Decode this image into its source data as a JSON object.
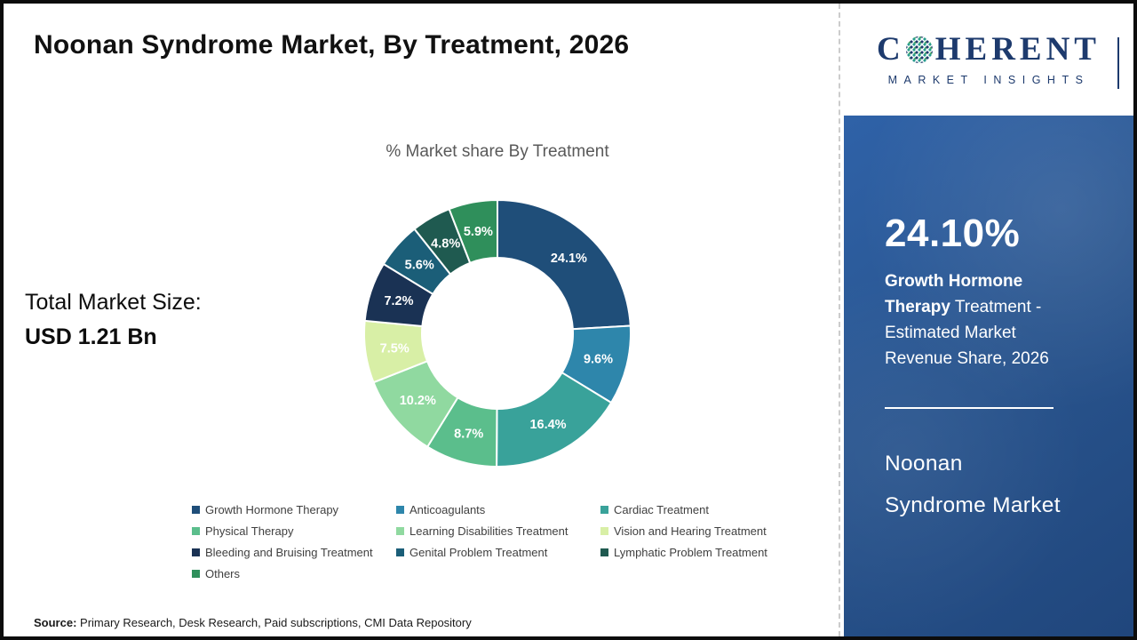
{
  "page": {
    "title": "Noonan Syndrome Market, By Treatment, 2026",
    "chart_heading": "% Market share By Treatment",
    "total_market_label": "Total Market Size:",
    "total_market_value": "USD 1.21 Bn",
    "source_label": "Source:",
    "source_text": " Primary Research, Desk Research, Paid subscriptions, CMI Data Repository"
  },
  "logo": {
    "word_start": "C",
    "word_rest": "HERENT",
    "subtitle": "MARKET INSIGHTS",
    "brand_navy": "#1d3a6d",
    "brand_teal": "#2a9d8f"
  },
  "sidebar": {
    "stat_value": "24.10%",
    "stat_desc_bold": "Growth Hormone Therapy",
    "stat_desc_rest": " Treatment - Estimated Market Revenue Share, 2026",
    "panel_title_line1": "Noonan",
    "panel_title_line2": "Syndrome Market",
    "panel_color": "#29558f"
  },
  "chart_data": {
    "type": "pie",
    "donut": true,
    "title": "% Market share By Treatment",
    "legend_position": "bottom",
    "data_label_format": "percent",
    "labels": [
      "Growth Hormone Therapy",
      "Anticoagulants",
      "Cardiac Treatment",
      "Physical Therapy",
      "Learning Disabilities Treatment",
      "Vision and Hearing Treatment",
      "Bleeding and Bruising Treatment",
      "Genital Problem Treatment",
      "Lymphatic Problem Treatment",
      "Others"
    ],
    "values": [
      24.1,
      9.6,
      16.4,
      8.7,
      10.2,
      7.5,
      7.2,
      5.6,
      4.8,
      5.9
    ],
    "colors": [
      "#1F4E79",
      "#2E86AB",
      "#39A29A",
      "#5BBE8C",
      "#90D9A0",
      "#D8EFA6",
      "#1A3254",
      "#1B5E78",
      "#1F5A50",
      "#2F8F5B"
    ]
  }
}
